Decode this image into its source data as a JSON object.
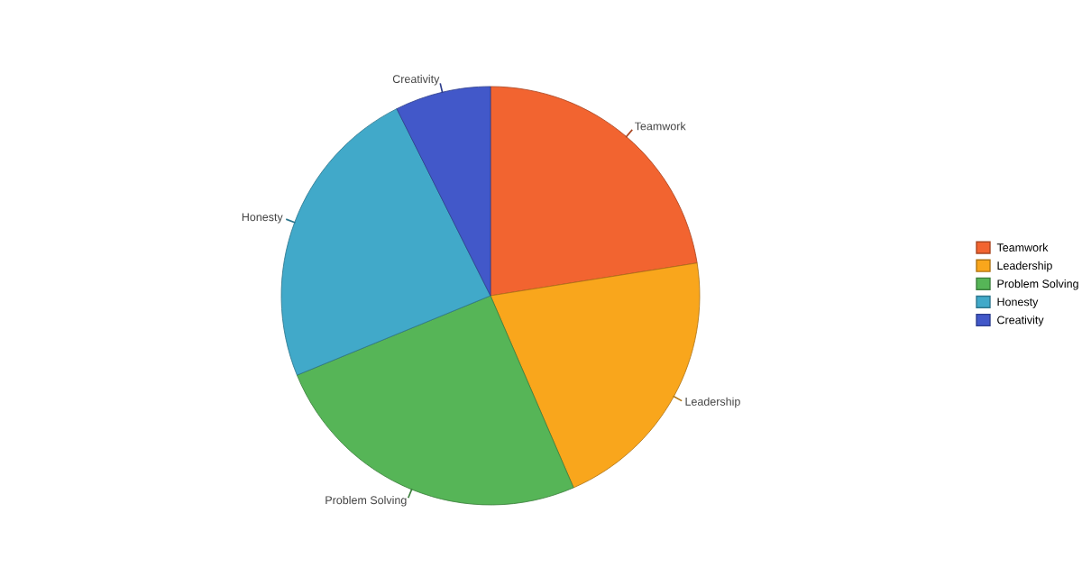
{
  "chart_data": {
    "type": "pie",
    "categories": [
      "Teamwork",
      "Leadership",
      "Problem Solving",
      "Honesty",
      "Creativity"
    ],
    "values": [
      22.5,
      21.0,
      25.3,
      23.8,
      7.4
    ],
    "colors": [
      "#f26430",
      "#f9a61c",
      "#56b557",
      "#41a9c9",
      "#4258c9"
    ],
    "legend": "right"
  }
}
